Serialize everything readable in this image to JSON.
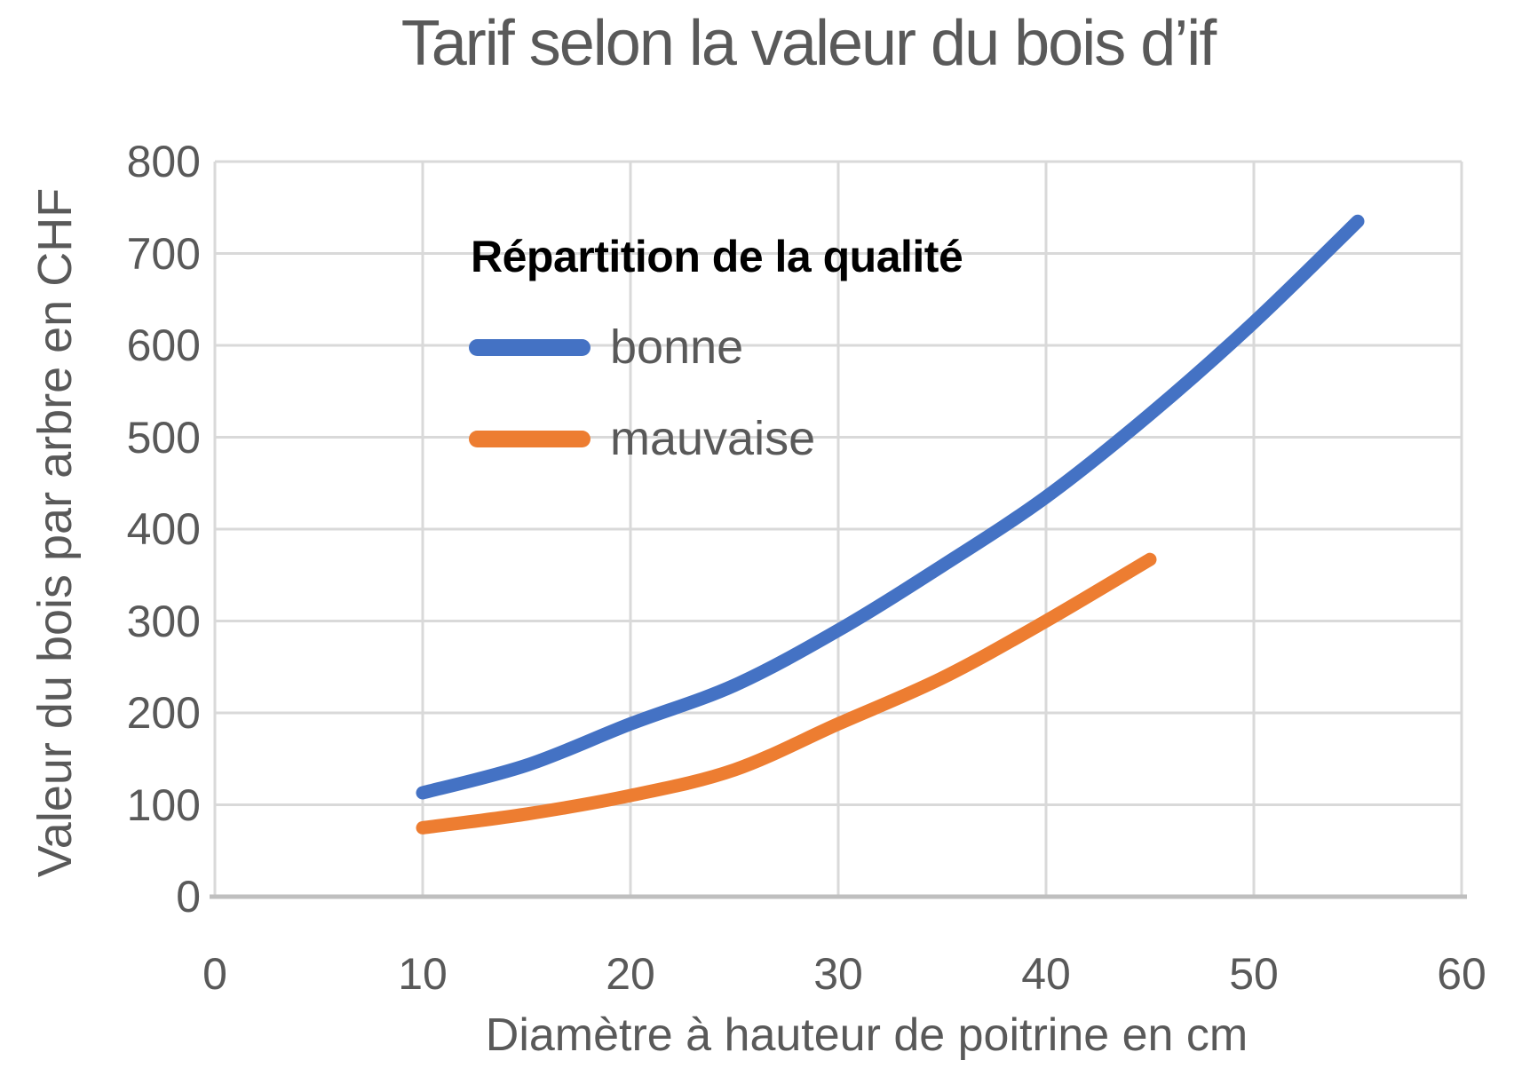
{
  "title": "Tarif selon la valeur du bois d’if",
  "legend": {
    "title": "Répartition de la qualité",
    "items": [
      {
        "label": "bonne",
        "color": "#4472C4"
      },
      {
        "label": "mauvaise",
        "color": "#ED7D31"
      }
    ]
  },
  "colors": {
    "series_bonne": "#4472C4",
    "series_mauvaise": "#ED7D31",
    "grid": "#D9D9D9",
    "axis_line": "#BFBFBF",
    "text": "#595959",
    "legend_title_text": "#000000"
  },
  "chart_data": {
    "type": "line",
    "title": "Tarif selon la valeur du bois d’if",
    "xlabel": "Diamètre à hauteur de poitrine en cm",
    "ylabel": "Valeur du bois par arbre en CHF",
    "xlim": [
      0,
      60
    ],
    "ylim": [
      0,
      800
    ],
    "x_ticks": [
      0,
      10,
      20,
      30,
      40,
      50,
      60
    ],
    "y_ticks": [
      0,
      100,
      200,
      300,
      400,
      500,
      600,
      700,
      800
    ],
    "grid": true,
    "legend_title": "Répartition de la qualité",
    "legend_position": "inside-top-left",
    "series": [
      {
        "name": "bonne",
        "color": "#4472C4",
        "x": [
          10,
          15,
          20,
          25,
          30,
          35,
          40,
          45,
          50,
          55
        ],
        "y": [
          113,
          143,
          188,
          230,
          290,
          360,
          435,
          525,
          625,
          735
        ]
      },
      {
        "name": "mauvaise",
        "color": "#ED7D31",
        "x": [
          10,
          15,
          20,
          25,
          30,
          35,
          40,
          45
        ],
        "y": [
          75,
          90,
          110,
          138,
          188,
          238,
          300,
          367
        ]
      }
    ]
  }
}
